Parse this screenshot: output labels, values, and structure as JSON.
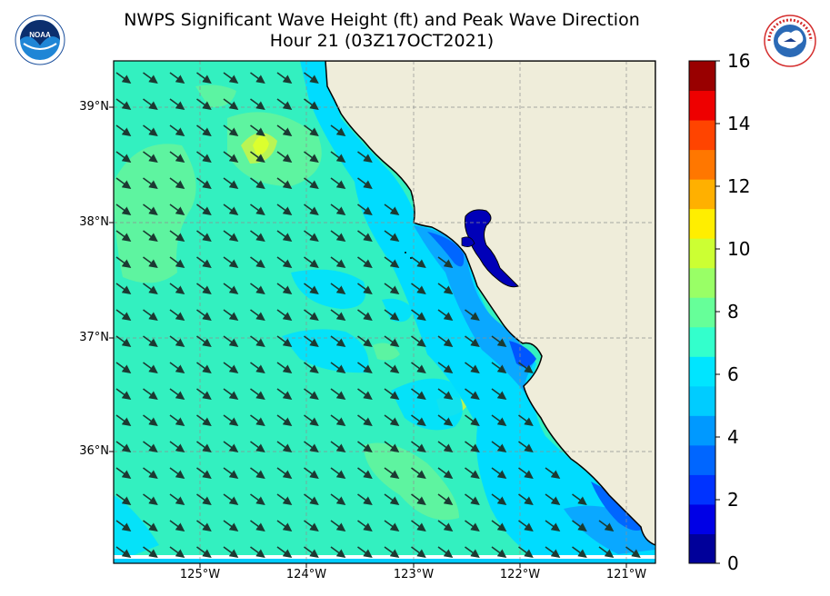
{
  "title": {
    "line1": "NWPS Significant Wave Height (ft) and Peak Wave Direction",
    "line2": "Hour 21 (03Z17OCT2021)"
  },
  "logos": {
    "left": {
      "icon": "noaa-logo-icon",
      "text": "NOAA"
    },
    "right": {
      "icon": "nws-logo-icon",
      "text": "NATIONAL WEATHER SERVICE"
    }
  },
  "map": {
    "lat_labels": [
      "39°N",
      "38°N",
      "37°N",
      "36°N"
    ],
    "lon_labels": [
      "125°W",
      "124°W",
      "123°W",
      "122°W",
      "121°W"
    ],
    "lat_range": [
      35.0,
      39.4
    ],
    "lon_range": [
      -125.8,
      -120.8
    ],
    "land_color": "#efedda",
    "gridlines": true,
    "arrows": {
      "direction": "toward SE (waves from NW)",
      "color": "#1b3a32"
    }
  },
  "colorbar": {
    "labels": [
      "0",
      "2",
      "4",
      "6",
      "8",
      "10",
      "12",
      "14",
      "16"
    ],
    "min": 0,
    "max": 16,
    "step": 1,
    "colors": [
      "#00009a",
      "#0000e6",
      "#0033ff",
      "#0066ff",
      "#0099ff",
      "#00ccff",
      "#00e5ff",
      "#33ffcc",
      "#66ff99",
      "#99ff66",
      "#ccff33",
      "#ffee00",
      "#ffb000",
      "#ff7700",
      "#ff4400",
      "#ee0000",
      "#990000"
    ]
  }
}
